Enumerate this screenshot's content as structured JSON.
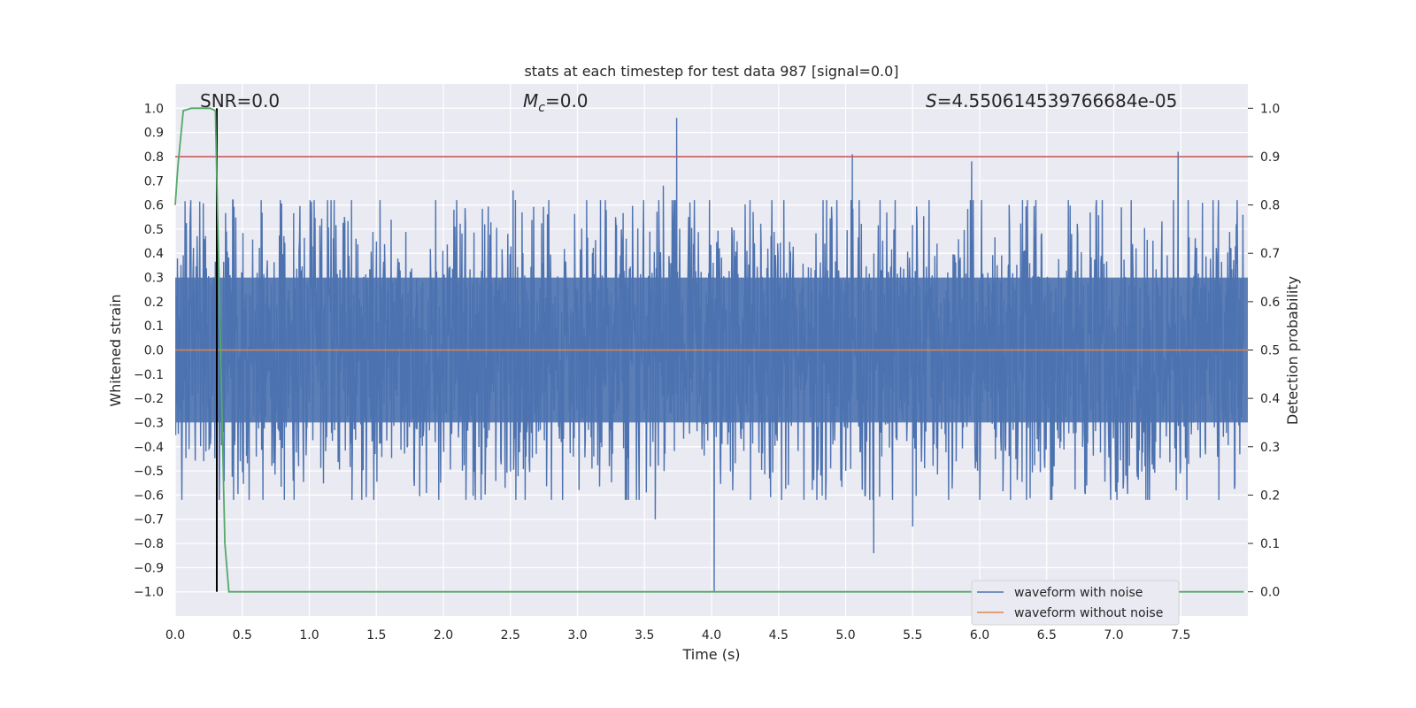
{
  "chart_data": {
    "type": "line",
    "title": "stats at each timestep for test data 987 [signal=0.0]",
    "xlabel": "Time (s)",
    "ylabel": "Whitened strain",
    "y2label": "Detection probability",
    "xlim": [
      0.0,
      8.0
    ],
    "ylim": [
      -1.1,
      1.1
    ],
    "y2lim": [
      -0.05,
      1.05
    ],
    "x_ticks": [
      "0.0",
      "0.5",
      "1.0",
      "1.5",
      "2.0",
      "2.5",
      "3.0",
      "3.5",
      "4.0",
      "4.5",
      "5.0",
      "5.5",
      "6.0",
      "6.5",
      "7.0",
      "7.5"
    ],
    "y_ticks": [
      "1.0",
      "0.9",
      "0.8",
      "0.7",
      "0.6",
      "0.5",
      "0.4",
      "0.3",
      "0.2",
      "0.1",
      "0.0",
      "−0.1",
      "−0.2",
      "−0.3",
      "−0.4",
      "−0.5",
      "−0.6",
      "−0.7",
      "−0.8",
      "−0.9",
      "−1.0"
    ],
    "y2_ticks": [
      "1.0",
      "0.9",
      "0.8",
      "0.7",
      "0.6",
      "0.5",
      "0.4",
      "0.3",
      "0.2",
      "0.1",
      "0.0"
    ],
    "annotations": {
      "snr": "SNR=0.0",
      "mc_symbol": "M",
      "mc_sub": "c",
      "mc_value": "=0.0",
      "s_symbol": "S",
      "s_value": "=4.550614539766684e-05"
    },
    "threshold": 0.9,
    "event_time": 0.31,
    "series": [
      {
        "name": "waveform with noise",
        "color": "#4c72b0",
        "axis": "left",
        "envelope": "noise, amplitude ~0.3 with spikes up to 0.96 and down to -1.0"
      },
      {
        "name": "waveform without noise",
        "color": "#dd8452",
        "axis": "left",
        "values": "constant 0.0"
      },
      {
        "name": "detection probability",
        "color": "#55a868",
        "axis": "right",
        "x": [
          0.0,
          0.02,
          0.06,
          0.12,
          0.2,
          0.26,
          0.3,
          0.33,
          0.37,
          0.4,
          2.8,
          3.0,
          7.97
        ],
        "y": [
          0.8,
          0.88,
          0.995,
          1.0,
          1.0,
          1.0,
          0.995,
          0.6,
          0.1,
          0.0,
          0.0,
          0.0,
          0.0
        ]
      },
      {
        "name": "threshold",
        "color": "#c44e52",
        "axis": "right",
        "values": "constant 0.9"
      },
      {
        "name": "event marker",
        "color": "#000000",
        "axis": "left",
        "values": "vertical line at t=0.31"
      }
    ],
    "legend": {
      "position": "lower-right",
      "entries": [
        {
          "label": "waveform with noise",
          "color": "#4c72b0"
        },
        {
          "label": "waveform without noise",
          "color": "#dd8452"
        }
      ]
    },
    "spikes_up": [
      [
        3.74,
        0.96
      ],
      [
        5.05,
        0.81
      ],
      [
        5.94,
        0.78
      ],
      [
        7.48,
        0.82
      ],
      [
        3.64,
        0.68
      ],
      [
        2.52,
        0.66
      ],
      [
        6.22,
        0.6
      ]
    ],
    "spikes_down": [
      [
        4.02,
        -1.0
      ],
      [
        5.21,
        -0.84
      ],
      [
        5.5,
        -0.73
      ],
      [
        3.58,
        -0.7
      ]
    ],
    "colors": {
      "axes_bg": "#eaeaf2",
      "grid": "#ffffff",
      "noise": "#4c72b0",
      "clean": "#dd8452",
      "prob": "#55a868",
      "threshold": "#c44e52",
      "marker": "#000000"
    }
  }
}
